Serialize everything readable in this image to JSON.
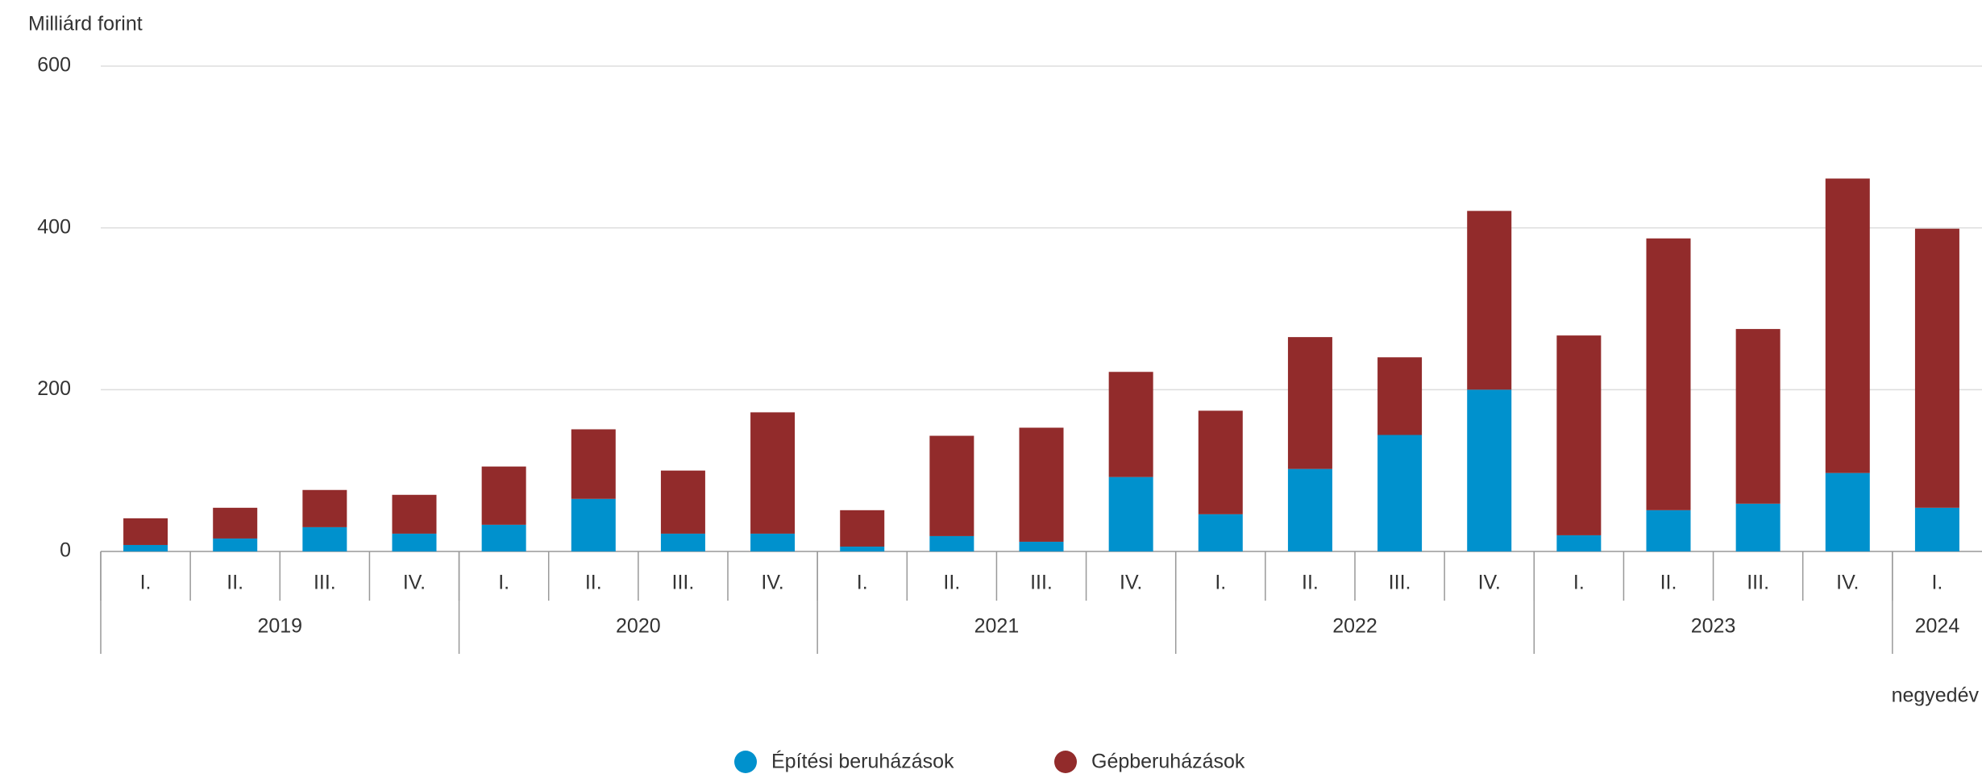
{
  "chart_data": {
    "type": "stacked_bar",
    "y_axis_label": "Milliárd forint",
    "x_axis_label": "negyedév",
    "categories": [
      "I.",
      "II.",
      "III.",
      "IV.",
      "I.",
      "II.",
      "III.",
      "IV.",
      "I.",
      "II.",
      "III.",
      "IV.",
      "I.",
      "II.",
      "III.",
      "IV.",
      "I.",
      "II.",
      "III.",
      "IV.",
      "I."
    ],
    "category_groups": [
      {
        "name": "2019",
        "size": 4
      },
      {
        "name": "2020",
        "size": 4
      },
      {
        "name": "2021",
        "size": 4
      },
      {
        "name": "2022",
        "size": 4
      },
      {
        "name": "2023",
        "size": 4
      },
      {
        "name": "2024",
        "size": 1
      }
    ],
    "series": [
      {
        "name": "Építési beruházások",
        "color": "#0091cd",
        "values": [
          8,
          16,
          30,
          22,
          33,
          65,
          22,
          22,
          6,
          19,
          12,
          92,
          46,
          102,
          144,
          200,
          20,
          51,
          59,
          97,
          54
        ]
      },
      {
        "name": "Gépberuházások",
        "color": "#922b2b",
        "values": [
          33,
          38,
          46,
          48,
          72,
          86,
          78,
          150,
          45,
          124,
          141,
          130,
          128,
          163,
          96,
          221,
          247,
          336,
          216,
          364,
          345
        ]
      }
    ],
    "ylim": [
      0,
      600
    ],
    "yticks": [
      0,
      200,
      400,
      600
    ],
    "grid": true
  }
}
